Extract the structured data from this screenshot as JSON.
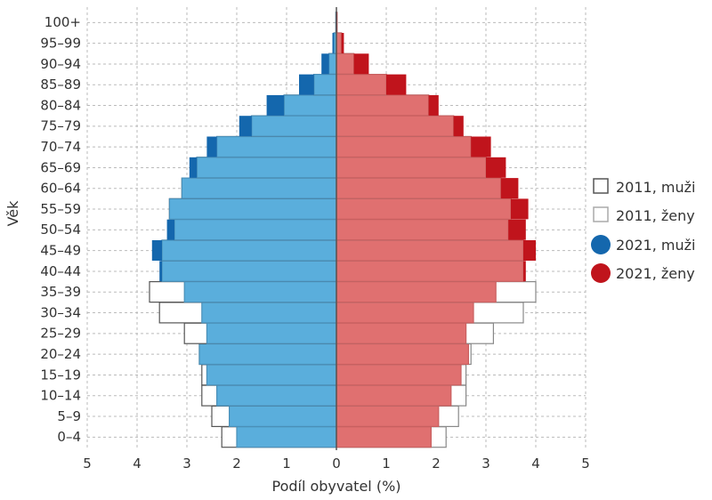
{
  "chart_data": {
    "type": "bar",
    "subtype": "population-pyramid",
    "categories": [
      "0–4",
      "5–9",
      "10–14",
      "15–19",
      "20–24",
      "25–29",
      "30–34",
      "35–39",
      "40–44",
      "45–49",
      "50–54",
      "55–59",
      "60–64",
      "65–69",
      "70–74",
      "75–79",
      "80–84",
      "85–89",
      "90–94",
      "95–99",
      "100+"
    ],
    "series": [
      {
        "name": "2011, muži",
        "side": "left",
        "style": "outline",
        "color": "#555555",
        "values": [
          2.3,
          2.5,
          2.7,
          2.7,
          2.75,
          3.05,
          3.55,
          3.75,
          3.5,
          3.5,
          3.25,
          3.35,
          3.1,
          2.8,
          2.4,
          1.7,
          1.05,
          0.45,
          0.15,
          0.05,
          0.01
        ]
      },
      {
        "name": "2011, ženy",
        "side": "right",
        "style": "outline",
        "color": "#999999",
        "values": [
          2.2,
          2.45,
          2.6,
          2.6,
          2.7,
          3.15,
          3.75,
          4.0,
          3.75,
          3.75,
          3.45,
          3.5,
          3.3,
          3.0,
          2.7,
          2.35,
          1.85,
          1.0,
          0.35,
          0.1,
          0.01
        ]
      },
      {
        "name": "2021, muži",
        "side": "left",
        "style": "fill",
        "color": "#5aaedc",
        "excess_color": "#1467ad",
        "values": [
          2.0,
          2.15,
          2.4,
          2.6,
          2.75,
          2.6,
          2.7,
          3.05,
          3.55,
          3.7,
          3.4,
          3.35,
          3.1,
          2.95,
          2.6,
          1.95,
          1.4,
          0.75,
          0.3,
          0.08,
          0.01
        ]
      },
      {
        "name": "2021, ženy",
        "side": "right",
        "style": "fill",
        "color": "#e07070",
        "excess_color": "#c0141c",
        "values": [
          1.9,
          2.05,
          2.3,
          2.5,
          2.65,
          2.6,
          2.75,
          3.2,
          3.8,
          4.0,
          3.8,
          3.85,
          3.65,
          3.4,
          3.1,
          2.55,
          2.05,
          1.4,
          0.65,
          0.15,
          0.02
        ]
      }
    ],
    "xlabel": "Podíl obyvatel (%)",
    "ylabel": "Věk",
    "xlim": [
      -5,
      5
    ],
    "x_ticks": [
      -5,
      -4,
      -3,
      -2,
      -1,
      0,
      1,
      2,
      3,
      4,
      5
    ],
    "x_tick_labels": [
      "5",
      "4",
      "3",
      "2",
      "1",
      "0",
      "1",
      "2",
      "3",
      "4",
      "5"
    ],
    "grid": true,
    "legend_placement": "right"
  },
  "legend": {
    "items": [
      {
        "label": "2011, muži",
        "marker": "square-outline",
        "color": "#555555"
      },
      {
        "label": "2011, ženy",
        "marker": "square-outline",
        "color": "#aaaaaa"
      },
      {
        "label": "2021, muži",
        "marker": "circle",
        "color": "#1467ad"
      },
      {
        "label": "2021, ženy",
        "marker": "circle",
        "color": "#c0141c"
      }
    ]
  }
}
